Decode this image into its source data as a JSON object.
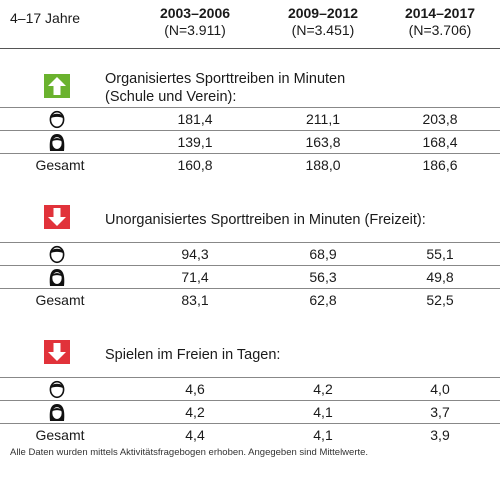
{
  "header": {
    "age_range": "4–17 Jahre",
    "columns": [
      {
        "period": "2003–2006",
        "n": "(N=3.911)"
      },
      {
        "period": "2009–2012",
        "n": "(N=3.451)"
      },
      {
        "period": "2014–2017",
        "n": "(N=3.706)"
      }
    ]
  },
  "colors": {
    "up_arrow": "#6ab22e",
    "down_arrow": "#e1323a",
    "rule": "#555555"
  },
  "sections": [
    {
      "trend": "up",
      "title_line1": "Organisiertes Sporttreiben in Minuten",
      "title_line2": "(Schule und Verein):",
      "rows": [
        {
          "group": "boy-icon",
          "values": [
            "181,4",
            "211,1",
            "203,8"
          ]
        },
        {
          "group": "girl-icon",
          "values": [
            "139,1",
            "163,8",
            "168,4"
          ]
        },
        {
          "group": "Gesamt",
          "values": [
            "160,8",
            "188,0",
            "186,6"
          ]
        }
      ]
    },
    {
      "trend": "down",
      "title_line1": "Unorganisiertes Sporttreiben in Minuten (Freizeit):",
      "title_line2": "",
      "rows": [
        {
          "group": "boy-icon",
          "values": [
            "94,3",
            "68,9",
            "55,1"
          ]
        },
        {
          "group": "girl-icon",
          "values": [
            "71,4",
            "56,3",
            "49,8"
          ]
        },
        {
          "group": "Gesamt",
          "values": [
            "83,1",
            "62,8",
            "52,5"
          ]
        }
      ]
    },
    {
      "trend": "down",
      "title_line1": "Spielen im Freien in Tagen:",
      "title_line2": "",
      "rows": [
        {
          "group": "boy-icon",
          "values": [
            "4,6",
            "4,2",
            "4,0"
          ]
        },
        {
          "group": "girl-icon",
          "values": [
            "4,2",
            "4,1",
            "3,7"
          ]
        },
        {
          "group": "Gesamt",
          "values": [
            "4,4",
            "4,1",
            "3,9"
          ]
        }
      ]
    }
  ],
  "footer": "Alle Daten wurden mittels Aktivitätsfragebogen erhoben. Angegeben sind Mittelwerte."
}
